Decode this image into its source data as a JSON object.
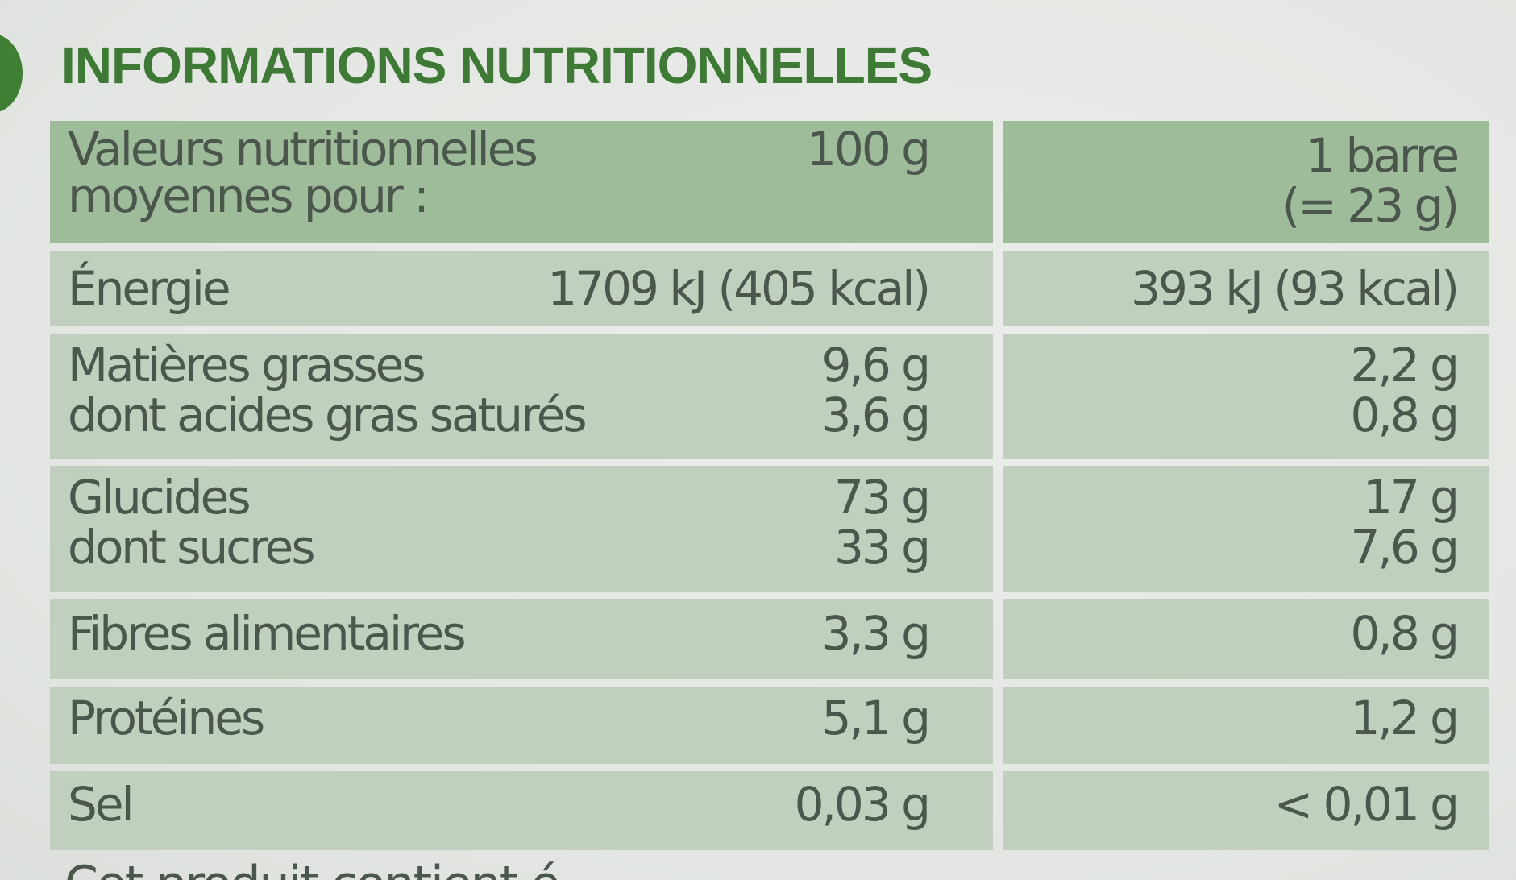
{
  "title": "INFORMATIONS NUTRITIONNELLES",
  "header": {
    "label_line1": "Valeurs nutritionnelles",
    "label_line2": "moyennes pour :",
    "col1": "100 g",
    "col2_line1": "1 barre",
    "col2_line2": "(= 23 g)"
  },
  "rows": [
    {
      "lines": [
        {
          "label": "Énergie",
          "per100": "1709 kJ (405 kcal)",
          "perBar": "393 kJ (93 kcal)"
        }
      ]
    },
    {
      "lines": [
        {
          "label": "Matières grasses",
          "per100": "9,6 g",
          "perBar": "2,2 g"
        },
        {
          "label": "dont acides gras saturés",
          "per100": "3,6 g",
          "perBar": "0,8 g"
        }
      ]
    },
    {
      "lines": [
        {
          "label": "Glucides",
          "per100": "73 g",
          "perBar": "17 g"
        },
        {
          "label": "dont sucres",
          "per100": "33 g",
          "perBar": "7,6 g"
        }
      ]
    },
    {
      "lines": [
        {
          "label": "Fibres alimentaires",
          "per100": "3,3 g",
          "perBar": "0,8 g"
        }
      ]
    },
    {
      "lines": [
        {
          "label": "Protéines",
          "per100": "5,1 g",
          "perBar": "1,2 g"
        }
      ]
    },
    {
      "lines": [
        {
          "label": "Sel",
          "per100": "0,03 g",
          "perBar": "< 0,01 g"
        }
      ]
    }
  ],
  "footer_partial": "Cet produit contient é",
  "colors": {
    "title_green": "#3e7a35",
    "header_bg": "#9fbc9a",
    "row_bg": "#c1d0be",
    "text": "#4b574c",
    "badge_green": "#3f7f33"
  }
}
